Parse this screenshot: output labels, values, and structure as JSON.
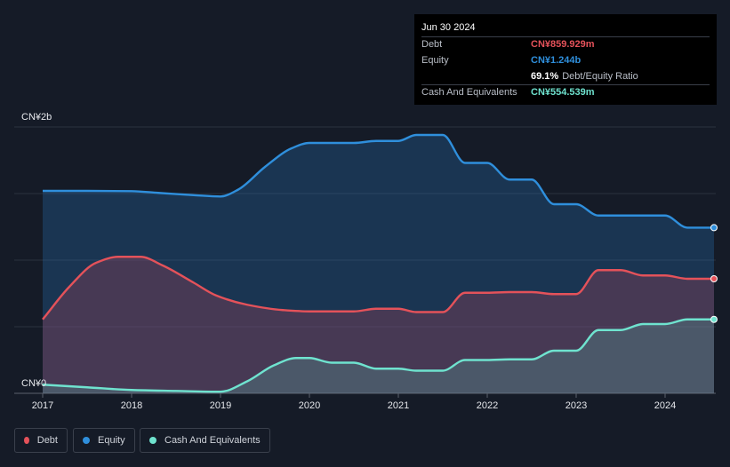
{
  "tooltip": {
    "date": "Jun 30 2024",
    "rows": [
      {
        "label": "Debt",
        "value": "CN¥859.929m",
        "color": "#e4525a"
      },
      {
        "label": "Equity",
        "value": "CN¥1.244b",
        "color": "#2f8fdc"
      },
      {
        "label": "",
        "value": "69.1%",
        "sub": "Debt/Equity Ratio",
        "color": "#ffffff"
      },
      {
        "label": "Cash And Equivalents",
        "value": "CN¥554.539m",
        "color": "#6fe3cf"
      }
    ]
  },
  "legend": [
    {
      "label": "Debt",
      "color": "#e4525a"
    },
    {
      "label": "Equity",
      "color": "#2f8fdc"
    },
    {
      "label": "Cash And Equivalents",
      "color": "#6fe3cf"
    }
  ],
  "chart_data": {
    "type": "area",
    "title": "",
    "ylabel": "",
    "y_tick_labels": [
      "CN¥2b",
      "CN¥0"
    ],
    "ylim": [
      0,
      2000
    ],
    "xlim": [
      2017.0,
      2024.55
    ],
    "x_ticks": [
      2017,
      2018,
      2019,
      2020,
      2021,
      2022,
      2023,
      2024
    ],
    "x_tick_labels": [
      "2017",
      "2018",
      "2019",
      "2020",
      "2021",
      "2022",
      "2023",
      "2024"
    ],
    "series": [
      {
        "name": "Equity",
        "color": "#2f8fdc",
        "x": [
          2017.0,
          2017.5,
          2018.0,
          2018.3,
          2018.7,
          2019.0,
          2019.2,
          2019.5,
          2019.8,
          2020.0,
          2020.5,
          2020.75,
          2021.0,
          2021.2,
          2021.5,
          2021.75,
          2022.0,
          2022.25,
          2022.5,
          2022.75,
          2023.0,
          2023.25,
          2023.5,
          2023.75,
          2024.0,
          2024.25,
          2024.55
        ],
        "values": [
          1520,
          1520,
          1518,
          1505,
          1488,
          1478,
          1530,
          1700,
          1840,
          1880,
          1880,
          1895,
          1895,
          1940,
          1940,
          1730,
          1730,
          1605,
          1605,
          1420,
          1420,
          1335,
          1335,
          1335,
          1335,
          1244,
          1244
        ]
      },
      {
        "name": "Debt",
        "color": "#e4525a",
        "x": [
          2017.0,
          2017.3,
          2017.6,
          2017.85,
          2018.1,
          2018.35,
          2018.7,
          2018.95,
          2019.3,
          2019.7,
          2020.0,
          2020.5,
          2020.75,
          2021.0,
          2021.2,
          2021.5,
          2021.75,
          2022.0,
          2022.25,
          2022.5,
          2022.75,
          2023.0,
          2023.25,
          2023.5,
          2023.75,
          2024.0,
          2024.25,
          2024.55
        ],
        "values": [
          555,
          800,
          980,
          1025,
          1025,
          960,
          830,
          735,
          665,
          625,
          615,
          615,
          635,
          635,
          610,
          610,
          755,
          755,
          760,
          760,
          745,
          745,
          925,
          925,
          885,
          885,
          860,
          860
        ]
      },
      {
        "name": "Cash And Equivalents",
        "color": "#6fe3cf",
        "x": [
          2017.0,
          2017.5,
          2018.0,
          2018.5,
          2019.0,
          2019.3,
          2019.6,
          2019.85,
          2020.0,
          2020.25,
          2020.5,
          2020.75,
          2021.0,
          2021.2,
          2021.5,
          2021.75,
          2022.0,
          2022.25,
          2022.5,
          2022.75,
          2023.0,
          2023.25,
          2023.5,
          2023.75,
          2024.0,
          2024.25,
          2024.55
        ],
        "values": [
          65,
          45,
          25,
          18,
          12,
          90,
          210,
          265,
          265,
          230,
          230,
          185,
          185,
          170,
          170,
          250,
          250,
          255,
          255,
          320,
          320,
          475,
          475,
          520,
          520,
          555,
          555
        ]
      }
    ]
  }
}
